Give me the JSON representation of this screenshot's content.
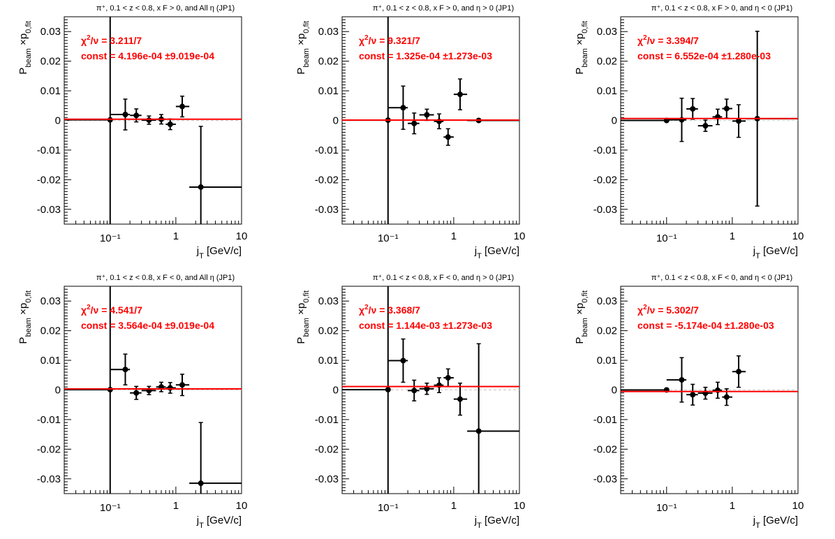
{
  "chart_data": [
    {
      "type": "scatter",
      "title": "π⁺, 0.1 < z < 0.8, x F > 0, and All  η (JP1)",
      "xlabel": "j T [GeV/c]",
      "ylabel": "P beam ×p 0,fit",
      "xscale": "log",
      "xlim": [
        0.02,
        10
      ],
      "ylim": [
        -0.035,
        0.035
      ],
      "x_tick_labels": [
        "10⁻¹",
        "1",
        "10"
      ],
      "y_tick_labels": [
        "0.03",
        "0.02",
        "0.01",
        "0",
        "-0.01",
        "-0.02",
        "-0.03"
      ],
      "fit_chi2": "χ²/ν = 3.211/7",
      "fit_const": "const = 4.196e-04  ±9.019e-04",
      "fit_value": 0.0004196,
      "series": [
        {
          "x": 0.1,
          "y": 0.0002,
          "x_lo": 0.02,
          "x_hi": 0.1,
          "y_err": 0.045
        },
        {
          "x": 0.17,
          "y": 0.002,
          "x_lo": 0.1,
          "x_hi": 0.2,
          "y_err": 0.0052
        },
        {
          "x": 0.25,
          "y": 0.0017,
          "x_lo": 0.2,
          "x_hi": 0.3,
          "y_err": 0.0022
        },
        {
          "x": 0.39,
          "y": 0.0001,
          "x_lo": 0.3,
          "x_hi": 0.5,
          "y_err": 0.0014
        },
        {
          "x": 0.6,
          "y": 0.0004,
          "x_lo": 0.5,
          "x_hi": 0.7,
          "y_err": 0.0016
        },
        {
          "x": 0.82,
          "y": -0.0013,
          "x_lo": 0.7,
          "x_hi": 1.0,
          "y_err": 0.0018
        },
        {
          "x": 1.25,
          "y": 0.0047,
          "x_lo": 1.0,
          "x_hi": 1.6,
          "y_err": 0.0035
        },
        {
          "x": 2.4,
          "y": -0.0225,
          "x_lo": 1.6,
          "x_hi": 10,
          "y_err": 0.0205
        }
      ]
    },
    {
      "type": "scatter",
      "title": "π⁺, 0.1 < z < 0.8, x F > 0, and  η > 0 (JP1)",
      "xlabel": "j T [GeV/c]",
      "ylabel": "P beam ×p 0,fit",
      "xscale": "log",
      "xlim": [
        0.02,
        10
      ],
      "ylim": [
        -0.035,
        0.035
      ],
      "x_tick_labels": [
        "10⁻¹",
        "1",
        "10"
      ],
      "y_tick_labels": [
        "0.03",
        "0.02",
        "0.01",
        "0",
        "-0.01",
        "-0.02",
        "-0.03"
      ],
      "fit_chi2": "χ²/ν = 9.321/7",
      "fit_const": "const = 1.325e-04  ±1.273e-03",
      "fit_value": 0.0001325,
      "series": [
        {
          "x": 0.1,
          "y": 0.0001,
          "x_lo": 0.02,
          "x_hi": 0.1,
          "y_err": 0.045
        },
        {
          "x": 0.17,
          "y": 0.0043,
          "x_lo": 0.1,
          "x_hi": 0.2,
          "y_err": 0.0073
        },
        {
          "x": 0.25,
          "y": -0.001,
          "x_lo": 0.2,
          "x_hi": 0.3,
          "y_err": 0.0035
        },
        {
          "x": 0.39,
          "y": 0.0019,
          "x_lo": 0.3,
          "x_hi": 0.5,
          "y_err": 0.0019
        },
        {
          "x": 0.6,
          "y": -0.0003,
          "x_lo": 0.5,
          "x_hi": 0.7,
          "y_err": 0.0025
        },
        {
          "x": 0.82,
          "y": -0.0056,
          "x_lo": 0.7,
          "x_hi": 1.0,
          "y_err": 0.0028
        },
        {
          "x": 1.25,
          "y": 0.0088,
          "x_lo": 1.0,
          "x_hi": 1.6,
          "y_err": 0.0052
        },
        {
          "x": 2.4,
          "y": 0.0,
          "x_lo": 1.6,
          "x_hi": 10,
          "y_err": 0.0
        }
      ]
    },
    {
      "type": "scatter",
      "title": "π⁺, 0.1 < z < 0.8, x F > 0, and  η < 0 (JP1)",
      "xlabel": "j T [GeV/c]",
      "ylabel": "P beam ×p 0,fit",
      "xscale": "log",
      "xlim": [
        0.02,
        10
      ],
      "ylim": [
        -0.035,
        0.035
      ],
      "x_tick_labels": [
        "10⁻¹",
        "1",
        "10"
      ],
      "y_tick_labels": [
        "0.03",
        "0.02",
        "0.01",
        "0",
        "-0.01",
        "-0.02",
        "-0.03"
      ],
      "fit_chi2": "χ²/ν = 3.394/7",
      "fit_const": "const = 6.552e-04  ±1.280e-03",
      "fit_value": 0.0006552,
      "series": [
        {
          "x": 0.1,
          "y": 0.0,
          "x_lo": 0.02,
          "x_hi": 0.1,
          "y_err": 0.0
        },
        {
          "x": 0.17,
          "y": 0.0002,
          "x_lo": 0.1,
          "x_hi": 0.2,
          "y_err": 0.0073
        },
        {
          "x": 0.25,
          "y": 0.0039,
          "x_lo": 0.2,
          "x_hi": 0.3,
          "y_err": 0.0035
        },
        {
          "x": 0.39,
          "y": -0.0018,
          "x_lo": 0.3,
          "x_hi": 0.5,
          "y_err": 0.0019
        },
        {
          "x": 0.6,
          "y": 0.0012,
          "x_lo": 0.5,
          "x_hi": 0.7,
          "y_err": 0.0026
        },
        {
          "x": 0.82,
          "y": 0.004,
          "x_lo": 0.7,
          "x_hi": 1.0,
          "y_err": 0.0032
        },
        {
          "x": 1.25,
          "y": -0.0002,
          "x_lo": 1.0,
          "x_hi": 1.6,
          "y_err": 0.0055
        },
        {
          "x": 2.4,
          "y": 0.0006,
          "x_lo": 1.6,
          "x_hi": 10,
          "y_err": 0.0295
        }
      ]
    },
    {
      "type": "scatter",
      "title": "π⁺, 0.1 < z < 0.8, x F < 0, and All  η (JP1)",
      "xlabel": "j T [GeV/c]",
      "ylabel": "P beam ×p 0,fit",
      "xscale": "log",
      "xlim": [
        0.02,
        10
      ],
      "ylim": [
        -0.035,
        0.035
      ],
      "x_tick_labels": [
        "10⁻¹",
        "1",
        "10"
      ],
      "y_tick_labels": [
        "0.03",
        "0.02",
        "0.01",
        "0",
        "-0.01",
        "-0.02",
        "-0.03"
      ],
      "fit_chi2": "χ²/ν = 4.541/7",
      "fit_const": "const = 3.564e-04  ±9.019e-04",
      "fit_value": 0.0003564,
      "series": [
        {
          "x": 0.1,
          "y": 0.0001,
          "x_lo": 0.02,
          "x_hi": 0.1,
          "y_err": 0.045
        },
        {
          "x": 0.17,
          "y": 0.0069,
          "x_lo": 0.1,
          "x_hi": 0.2,
          "y_err": 0.0052
        },
        {
          "x": 0.25,
          "y": -0.001,
          "x_lo": 0.2,
          "x_hi": 0.3,
          "y_err": 0.0022
        },
        {
          "x": 0.39,
          "y": -0.0002,
          "x_lo": 0.3,
          "x_hi": 0.5,
          "y_err": 0.0014
        },
        {
          "x": 0.6,
          "y": 0.001,
          "x_lo": 0.5,
          "x_hi": 0.7,
          "y_err": 0.0016
        },
        {
          "x": 0.82,
          "y": 0.0007,
          "x_lo": 0.7,
          "x_hi": 1.0,
          "y_err": 0.0018
        },
        {
          "x": 1.25,
          "y": 0.0017,
          "x_lo": 1.0,
          "x_hi": 1.6,
          "y_err": 0.0036
        },
        {
          "x": 2.4,
          "y": -0.0315,
          "x_lo": 1.6,
          "x_hi": 10,
          "y_err": 0.0205
        }
      ]
    },
    {
      "type": "scatter",
      "title": "π⁺, 0.1 < z < 0.8, x F < 0, and  η > 0 (JP1)",
      "xlabel": "j T [GeV/c]",
      "ylabel": "P beam ×p 0,fit",
      "xscale": "log",
      "xlim": [
        0.02,
        10
      ],
      "ylim": [
        -0.035,
        0.035
      ],
      "x_tick_labels": [
        "10⁻¹",
        "1",
        "10"
      ],
      "y_tick_labels": [
        "0.03",
        "0.02",
        "0.01",
        "0",
        "-0.01",
        "-0.02",
        "-0.03"
      ],
      "fit_chi2": "χ²/ν = 3.368/7",
      "fit_const": "const = 1.144e-03  ±1.273e-03",
      "fit_value": 0.001144,
      "series": [
        {
          "x": 0.1,
          "y": 0.0001,
          "x_lo": 0.02,
          "x_hi": 0.1,
          "y_err": 0.045
        },
        {
          "x": 0.17,
          "y": 0.0099,
          "x_lo": 0.1,
          "x_hi": 0.2,
          "y_err": 0.0073
        },
        {
          "x": 0.25,
          "y": -0.0002,
          "x_lo": 0.2,
          "x_hi": 0.3,
          "y_err": 0.0035
        },
        {
          "x": 0.39,
          "y": 0.0004,
          "x_lo": 0.3,
          "x_hi": 0.5,
          "y_err": 0.0019
        },
        {
          "x": 0.6,
          "y": 0.0016,
          "x_lo": 0.5,
          "x_hi": 0.7,
          "y_err": 0.0025
        },
        {
          "x": 0.82,
          "y": 0.0041,
          "x_lo": 0.7,
          "x_hi": 1.0,
          "y_err": 0.003
        },
        {
          "x": 1.25,
          "y": -0.0031,
          "x_lo": 1.0,
          "x_hi": 1.6,
          "y_err": 0.0054
        },
        {
          "x": 2.4,
          "y": -0.0139,
          "x_lo": 1.6,
          "x_hi": 10,
          "y_err": 0.0295
        }
      ]
    },
    {
      "type": "scatter",
      "title": "π⁺, 0.1 < z < 0.8, x F < 0, and  η < 0 (JP1)",
      "xlabel": "j T [GeV/c]",
      "ylabel": "P beam ×p 0,fit",
      "xscale": "log",
      "xlim": [
        0.02,
        10
      ],
      "ylim": [
        -0.035,
        0.035
      ],
      "x_tick_labels": [
        "10⁻¹",
        "1",
        "10"
      ],
      "y_tick_labels": [
        "0.03",
        "0.02",
        "0.01",
        "0",
        "-0.01",
        "-0.02",
        "-0.03"
      ],
      "fit_chi2": "χ²/ν = 5.302/7",
      "fit_const": "const = -5.174e-04  ±1.280e-03",
      "fit_value": -0.0005174,
      "series": [
        {
          "x": 0.1,
          "y": 0.0,
          "x_lo": 0.02,
          "x_hi": 0.1,
          "y_err": 0.0
        },
        {
          "x": 0.17,
          "y": 0.0034,
          "x_lo": 0.1,
          "x_hi": 0.2,
          "y_err": 0.0075
        },
        {
          "x": 0.25,
          "y": -0.0016,
          "x_lo": 0.2,
          "x_hi": 0.3,
          "y_err": 0.0035
        },
        {
          "x": 0.39,
          "y": -0.0011,
          "x_lo": 0.3,
          "x_hi": 0.5,
          "y_err": 0.002
        },
        {
          "x": 0.6,
          "y": -0.0001,
          "x_lo": 0.5,
          "x_hi": 0.7,
          "y_err": 0.0027
        },
        {
          "x": 0.82,
          "y": -0.0024,
          "x_lo": 0.7,
          "x_hi": 1.0,
          "y_err": 0.0028
        },
        {
          "x": 1.25,
          "y": 0.0062,
          "x_lo": 1.0,
          "x_hi": 1.6,
          "y_err": 0.0053
        }
      ]
    }
  ],
  "colors": {
    "fit_line": "#ff0000",
    "markers": "#000000",
    "zero_line": "#c8c8c8"
  }
}
